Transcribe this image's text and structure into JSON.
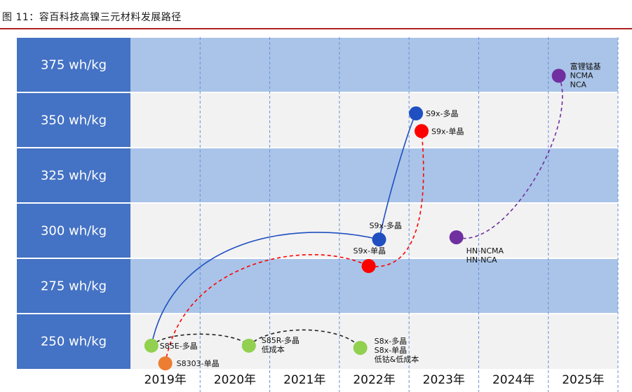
{
  "figure_title": "图 11：容百科技高镍三元材料发展路径",
  "chart_data": {
    "type": "scatter",
    "title": "图 11：容百科技高镍三元材料发展路径",
    "y_categories": [
      "375 wh/kg",
      "350 wh/kg",
      "325 wh/kg",
      "300 wh/kg",
      "275 wh/kg",
      "250 wh/kg"
    ],
    "x_categories": [
      "2019年",
      "2020年",
      "2021年",
      "2022年",
      "2023年",
      "2024年",
      "2025年"
    ],
    "points": [
      {
        "id": "s85e",
        "x": 2019.3,
        "y": 248,
        "color": "#92d050",
        "label": [
          "S85E-多晶"
        ]
      },
      {
        "id": "s8303",
        "x": 2019.5,
        "y": 240,
        "color": "#ed7d31",
        "label": [
          "S8303-单晶"
        ]
      },
      {
        "id": "s85r",
        "x": 2020.7,
        "y": 248,
        "color": "#92d050",
        "label": [
          "S85R-多晶",
          "低成本"
        ]
      },
      {
        "id": "s8x",
        "x": 2022.3,
        "y": 247,
        "color": "#92d050",
        "label": [
          "S8x-多晶",
          "S8x-单晶",
          "低钴&低成本"
        ]
      },
      {
        "id": "s9x_poly_2022",
        "x": 2022.57,
        "y": 296,
        "color": "#1f4fc1",
        "label": [
          "S9x-多晶"
        ]
      },
      {
        "id": "s9x_single_2022",
        "x": 2022.42,
        "y": 284,
        "color": "#ff0000",
        "label": [
          "S9x-单晶"
        ]
      },
      {
        "id": "s9x_poly_2023",
        "x": 2023.1,
        "y": 353,
        "color": "#1f4fc1",
        "label": [
          "S9x-多晶"
        ]
      },
      {
        "id": "s9x_single_2023",
        "x": 2023.18,
        "y": 345,
        "color": "#ff0000",
        "label": [
          "S9x-单晶"
        ]
      },
      {
        "id": "hn",
        "x": 2023.68,
        "y": 297,
        "color": "#7030a0",
        "label": [
          "HN-NCMA",
          "HN-NCA"
        ]
      },
      {
        "id": "fulimengji",
        "x": 2025.15,
        "y": 370,
        "color": "#7030a0",
        "label": [
          "富锂锰基",
          "NCMA",
          "NCA"
        ]
      }
    ],
    "paths": [
      {
        "from": "s85e",
        "to": "s85r",
        "color": "#222222",
        "style": "dashed"
      },
      {
        "from": "s85r",
        "to": "s8x",
        "color": "#222222",
        "style": "dashed"
      },
      {
        "from": "s85e",
        "to": "s9x_poly_2022",
        "color": "#1f4fc1",
        "style": "solid"
      },
      {
        "from": "s9x_poly_2022",
        "to": "s9x_poly_2023",
        "color": "#1f4fc1",
        "style": "solid"
      },
      {
        "from": "s8303",
        "to": "s9x_single_2022",
        "color": "#ff0000",
        "style": "dashed"
      },
      {
        "from": "s9x_single_2022",
        "to": "s9x_single_2023",
        "color": "#ff0000",
        "style": "dashed"
      },
      {
        "from": "hn",
        "to": "fulimengji",
        "color": "#7030a0",
        "style": "dashed"
      }
    ],
    "xlabel": "",
    "ylabel": "",
    "grid": true
  }
}
